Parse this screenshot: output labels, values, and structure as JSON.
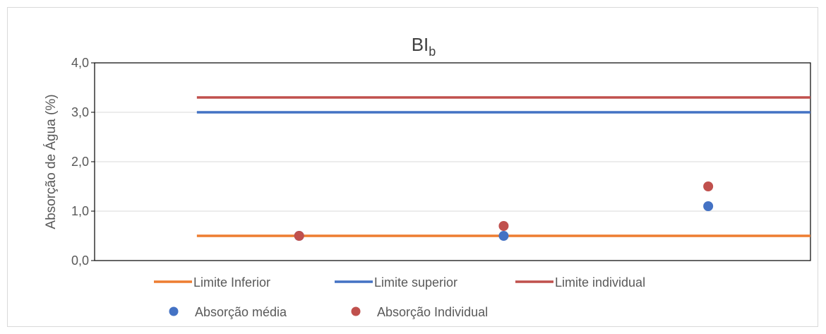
{
  "chart_data": {
    "type": "scatter",
    "title": "BI",
    "title_subscript": "b",
    "xlabel": "",
    "ylabel": "Absorção de Água (%)",
    "ylim": [
      0,
      4
    ],
    "yticks": [
      "0,0",
      "1,0",
      "2,0",
      "3,0",
      "4,0"
    ],
    "xlim": [
      0,
      3.5
    ],
    "grid": true,
    "legend_position": "bottom",
    "lines": [
      {
        "name": "Limite Inferior",
        "color": "#ed7d31",
        "x": [
          0.5,
          3.5
        ],
        "y": [
          0.5,
          0.5
        ]
      },
      {
        "name": "Limite superior",
        "color": "#4472c4",
        "x": [
          0.5,
          3.5
        ],
        "y": [
          3.0,
          3.0
        ]
      },
      {
        "name": "Limite individual",
        "color": "#c0504d",
        "x": [
          0.5,
          3.5
        ],
        "y": [
          3.3,
          3.3
        ]
      }
    ],
    "points": [
      {
        "name": "Absorção média",
        "color": "#4472c4",
        "x": [
          1,
          2,
          3
        ],
        "y": [
          0.5,
          0.5,
          1.1
        ]
      },
      {
        "name": "Absorção Individual",
        "color": "#c0504d",
        "x": [
          1,
          2,
          3
        ],
        "y": [
          0.5,
          0.7,
          1.5
        ]
      }
    ]
  }
}
